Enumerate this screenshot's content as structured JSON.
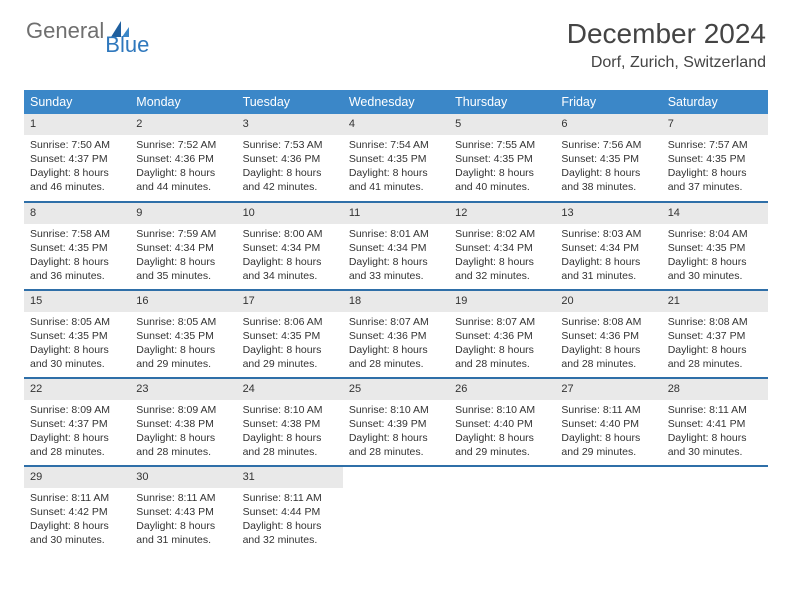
{
  "brand": {
    "part1": "General",
    "part2": "Blue"
  },
  "title": "December 2024",
  "location": "Dorf, Zurich, Switzerland",
  "colors": {
    "header_bg": "#3b87c8",
    "row_divider": "#2f6fa8",
    "daynum_bg": "#e9e9e9",
    "brand_gray": "#6f6f6f",
    "brand_blue": "#2f78bd"
  },
  "day_labels": [
    "Sunday",
    "Monday",
    "Tuesday",
    "Wednesday",
    "Thursday",
    "Friday",
    "Saturday"
  ],
  "weeks": [
    [
      {
        "n": "1",
        "sr": "7:50 AM",
        "ss": "4:37 PM",
        "dl": "8 hours and 46 minutes."
      },
      {
        "n": "2",
        "sr": "7:52 AM",
        "ss": "4:36 PM",
        "dl": "8 hours and 44 minutes."
      },
      {
        "n": "3",
        "sr": "7:53 AM",
        "ss": "4:36 PM",
        "dl": "8 hours and 42 minutes."
      },
      {
        "n": "4",
        "sr": "7:54 AM",
        "ss": "4:35 PM",
        "dl": "8 hours and 41 minutes."
      },
      {
        "n": "5",
        "sr": "7:55 AM",
        "ss": "4:35 PM",
        "dl": "8 hours and 40 minutes."
      },
      {
        "n": "6",
        "sr": "7:56 AM",
        "ss": "4:35 PM",
        "dl": "8 hours and 38 minutes."
      },
      {
        "n": "7",
        "sr": "7:57 AM",
        "ss": "4:35 PM",
        "dl": "8 hours and 37 minutes."
      }
    ],
    [
      {
        "n": "8",
        "sr": "7:58 AM",
        "ss": "4:35 PM",
        "dl": "8 hours and 36 minutes."
      },
      {
        "n": "9",
        "sr": "7:59 AM",
        "ss": "4:34 PM",
        "dl": "8 hours and 35 minutes."
      },
      {
        "n": "10",
        "sr": "8:00 AM",
        "ss": "4:34 PM",
        "dl": "8 hours and 34 minutes."
      },
      {
        "n": "11",
        "sr": "8:01 AM",
        "ss": "4:34 PM",
        "dl": "8 hours and 33 minutes."
      },
      {
        "n": "12",
        "sr": "8:02 AM",
        "ss": "4:34 PM",
        "dl": "8 hours and 32 minutes."
      },
      {
        "n": "13",
        "sr": "8:03 AM",
        "ss": "4:34 PM",
        "dl": "8 hours and 31 minutes."
      },
      {
        "n": "14",
        "sr": "8:04 AM",
        "ss": "4:35 PM",
        "dl": "8 hours and 30 minutes."
      }
    ],
    [
      {
        "n": "15",
        "sr": "8:05 AM",
        "ss": "4:35 PM",
        "dl": "8 hours and 30 minutes."
      },
      {
        "n": "16",
        "sr": "8:05 AM",
        "ss": "4:35 PM",
        "dl": "8 hours and 29 minutes."
      },
      {
        "n": "17",
        "sr": "8:06 AM",
        "ss": "4:35 PM",
        "dl": "8 hours and 29 minutes."
      },
      {
        "n": "18",
        "sr": "8:07 AM",
        "ss": "4:36 PM",
        "dl": "8 hours and 28 minutes."
      },
      {
        "n": "19",
        "sr": "8:07 AM",
        "ss": "4:36 PM",
        "dl": "8 hours and 28 minutes."
      },
      {
        "n": "20",
        "sr": "8:08 AM",
        "ss": "4:36 PM",
        "dl": "8 hours and 28 minutes."
      },
      {
        "n": "21",
        "sr": "8:08 AM",
        "ss": "4:37 PM",
        "dl": "8 hours and 28 minutes."
      }
    ],
    [
      {
        "n": "22",
        "sr": "8:09 AM",
        "ss": "4:37 PM",
        "dl": "8 hours and 28 minutes."
      },
      {
        "n": "23",
        "sr": "8:09 AM",
        "ss": "4:38 PM",
        "dl": "8 hours and 28 minutes."
      },
      {
        "n": "24",
        "sr": "8:10 AM",
        "ss": "4:38 PM",
        "dl": "8 hours and 28 minutes."
      },
      {
        "n": "25",
        "sr": "8:10 AM",
        "ss": "4:39 PM",
        "dl": "8 hours and 28 minutes."
      },
      {
        "n": "26",
        "sr": "8:10 AM",
        "ss": "4:40 PM",
        "dl": "8 hours and 29 minutes."
      },
      {
        "n": "27",
        "sr": "8:11 AM",
        "ss": "4:40 PM",
        "dl": "8 hours and 29 minutes."
      },
      {
        "n": "28",
        "sr": "8:11 AM",
        "ss": "4:41 PM",
        "dl": "8 hours and 30 minutes."
      }
    ],
    [
      {
        "n": "29",
        "sr": "8:11 AM",
        "ss": "4:42 PM",
        "dl": "8 hours and 30 minutes."
      },
      {
        "n": "30",
        "sr": "8:11 AM",
        "ss": "4:43 PM",
        "dl": "8 hours and 31 minutes."
      },
      {
        "n": "31",
        "sr": "8:11 AM",
        "ss": "4:44 PM",
        "dl": "8 hours and 32 minutes."
      },
      null,
      null,
      null,
      null
    ]
  ],
  "labels": {
    "sunrise": "Sunrise: ",
    "sunset": "Sunset: ",
    "daylight": "Daylight: "
  }
}
